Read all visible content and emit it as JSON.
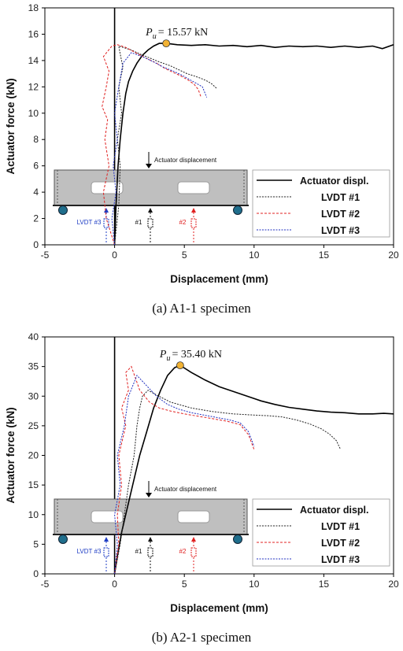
{
  "chart_data": [
    {
      "type": "line",
      "caption": "(a) A1-1 specimen",
      "xlabel": "Displacement (mm)",
      "ylabel": "Actuator force (kN)",
      "xlim": [
        -5,
        20
      ],
      "ylim": [
        0,
        18
      ],
      "xticks": [
        -5,
        0,
        5,
        10,
        15,
        20
      ],
      "yticks": [
        0,
        2,
        4,
        6,
        8,
        10,
        12,
        14,
        16,
        18
      ],
      "peak": {
        "label_base": "P",
        "label_sub": "u",
        "label_value": "= 15.57 kN",
        "x": 3.7,
        "y": 15.3,
        "color": "#f2b233"
      },
      "legend": {
        "position": "lower-right"
      },
      "series": [
        {
          "name": "Actuator displ.",
          "color": "#000000",
          "dash": "",
          "width": 1.6,
          "x": [
            0,
            0.1,
            0.25,
            0.4,
            0.6,
            0.8,
            1.0,
            1.3,
            1.6,
            2.0,
            2.4,
            2.8,
            3.2,
            3.7,
            4.5,
            5.5,
            6.5,
            7.5,
            8.5,
            9.5,
            10.5,
            11.5,
            12.5,
            13.5,
            14.5,
            15.5,
            16.5,
            17.5,
            18.5,
            19.2,
            20
          ],
          "y": [
            0,
            3,
            6,
            8,
            10,
            11.5,
            12.4,
            13.2,
            13.8,
            14.4,
            14.8,
            15.1,
            15.3,
            15.3,
            15.2,
            15.15,
            15.2,
            15.1,
            15.15,
            15.05,
            15.15,
            15.0,
            15.1,
            15.05,
            15.1,
            15.0,
            15.1,
            15.0,
            15.1,
            14.9,
            15.2
          ]
        },
        {
          "name": "LVDT #1",
          "color": "#222222",
          "dash": "2,1.5",
          "width": 1,
          "x": [
            0,
            0.3,
            0.4,
            0.2,
            0.5,
            0.3,
            0.6,
            0.4,
            0.3,
            0.6,
            1.2,
            1.8,
            2.5,
            3.2,
            4.0,
            4.6,
            5.2,
            5.8,
            6.3,
            6.7,
            7.0,
            7.3
          ],
          "y": [
            0,
            3,
            6,
            8,
            10,
            12,
            13.5,
            14.5,
            15.1,
            15.0,
            14.8,
            14.5,
            14.2,
            13.9,
            13.6,
            13.3,
            13.0,
            12.8,
            12.6,
            12.4,
            12.2,
            11.9
          ]
        },
        {
          "name": "LVDT #2",
          "color": "#e02020",
          "dash": "3,2",
          "width": 1,
          "x": [
            0,
            -0.6,
            -0.8,
            -0.4,
            -0.7,
            -0.5,
            -0.9,
            -0.6,
            -0.4,
            -0.8,
            -0.2,
            0.2,
            0.8,
            1.5,
            2.2,
            3.0,
            3.6,
            4.2,
            4.8,
            5.3,
            5.7,
            6.0,
            6.2
          ],
          "y": [
            0,
            2,
            4,
            6,
            8,
            9.5,
            10.5,
            12,
            13.2,
            14.3,
            15.1,
            15.2,
            15.0,
            14.6,
            14.2,
            13.8,
            13.4,
            13.1,
            12.8,
            12.5,
            12.2,
            11.8,
            11.2
          ]
        },
        {
          "name": "LVDT #3",
          "color": "#2030c0",
          "dash": "2,1.5",
          "width": 1,
          "x": [
            0,
            -0.2,
            0.1,
            -0.1,
            0.2,
            0.0,
            0.3,
            0.6,
            1.2,
            2.0,
            2.8,
            3.5,
            4.2,
            4.8,
            5.3,
            5.8,
            6.3,
            6.6
          ],
          "y": [
            0,
            2,
            4,
            6,
            8,
            10,
            12,
            13.8,
            14.6,
            14.3,
            13.9,
            13.5,
            13.2,
            12.9,
            12.6,
            12.3,
            12.0,
            11.2
          ]
        }
      ],
      "diagram": {
        "actuator_label": "Actuator displacement",
        "lvdt_labels": [
          "LVDT #3",
          "#1",
          "#2"
        ]
      }
    },
    {
      "type": "line",
      "caption": "(b) A2-1 specimen",
      "xlabel": "Displacement (mm)",
      "ylabel": "Actuator force (kN)",
      "xlim": [
        -5,
        20
      ],
      "ylim": [
        0,
        40
      ],
      "xticks": [
        -5,
        0,
        5,
        10,
        15,
        20
      ],
      "yticks": [
        0,
        5,
        10,
        15,
        20,
        25,
        30,
        35,
        40
      ],
      "peak": {
        "label_base": "P",
        "label_sub": "u",
        "label_value": "= 35.40 kN",
        "x": 4.7,
        "y": 35.2,
        "color": "#f2b233"
      },
      "legend": {
        "position": "lower-right"
      },
      "series": [
        {
          "name": "Actuator displ.",
          "color": "#000000",
          "dash": "",
          "width": 1.6,
          "x": [
            0,
            0.2,
            0.5,
            0.9,
            1.3,
            1.8,
            2.3,
            2.8,
            3.3,
            3.8,
            4.3,
            4.7,
            5.5,
            6.5,
            7.5,
            8.5,
            9.5,
            10.5,
            11.5,
            12.5,
            13.5,
            14.5,
            15.5,
            16.5,
            17.5,
            18.5,
            19.3,
            20
          ],
          "y": [
            0,
            3,
            7,
            11,
            15,
            20,
            24,
            28,
            31,
            33.5,
            34.8,
            35.2,
            34.0,
            32.7,
            31.6,
            30.8,
            30.0,
            29.2,
            28.6,
            28.1,
            27.8,
            27.5,
            27.3,
            27.2,
            27.0,
            27.0,
            27.1,
            27.0
          ]
        },
        {
          "name": "LVDT #1",
          "color": "#222222",
          "dash": "2,1.5",
          "width": 1,
          "x": [
            0,
            0.4,
            0.7,
            1.0,
            1.4,
            1.6,
            1.8,
            2.0,
            2.4,
            3.0,
            4.0,
            5.5,
            7.0,
            8.5,
            10.0,
            11.0,
            12.0,
            13.0,
            14.0,
            14.8,
            15.4,
            15.9,
            16.2
          ],
          "y": [
            0,
            5,
            10,
            15,
            20,
            25,
            28,
            30,
            31,
            30.2,
            29,
            28,
            27.4,
            27.0,
            26.8,
            26.7,
            26.5,
            26.0,
            25.3,
            24.5,
            23.6,
            22.5,
            21.0
          ]
        },
        {
          "name": "LVDT #2",
          "color": "#e02020",
          "dash": "3,2",
          "width": 1,
          "x": [
            0,
            0.3,
            0.2,
            0.5,
            0.3,
            0.8,
            0.5,
            1.0,
            0.8,
            1.2,
            1.8,
            2.5,
            3.2,
            4.0,
            5.0,
            6.0,
            7.0,
            8.0,
            9.0,
            9.6,
            10.0
          ],
          "y": [
            0,
            5,
            10,
            15,
            20,
            25,
            28,
            31,
            34,
            35,
            31,
            29,
            28,
            27.5,
            27,
            26.6,
            26.2,
            25.8,
            25.2,
            23.5,
            21.0
          ]
        },
        {
          "name": "LVDT #3",
          "color": "#2030c0",
          "dash": "2,1.5",
          "width": 1,
          "x": [
            0,
            0.2,
            0.0,
            0.4,
            0.2,
            0.7,
            1.0,
            1.6,
            2.2,
            3.0,
            3.8,
            4.6,
            5.5,
            6.4,
            7.3,
            8.2,
            9.0,
            9.6,
            10.0
          ],
          "y": [
            0,
            5,
            10,
            15,
            20,
            25,
            30,
            33.5,
            32,
            30,
            28.6,
            27.8,
            27.2,
            26.8,
            26.4,
            26.0,
            25.5,
            24.0,
            21.5
          ]
        }
      ],
      "diagram": {
        "actuator_label": "Actuator displacement",
        "lvdt_labels": [
          "LVDT #3",
          "#1",
          "#2"
        ]
      }
    }
  ]
}
